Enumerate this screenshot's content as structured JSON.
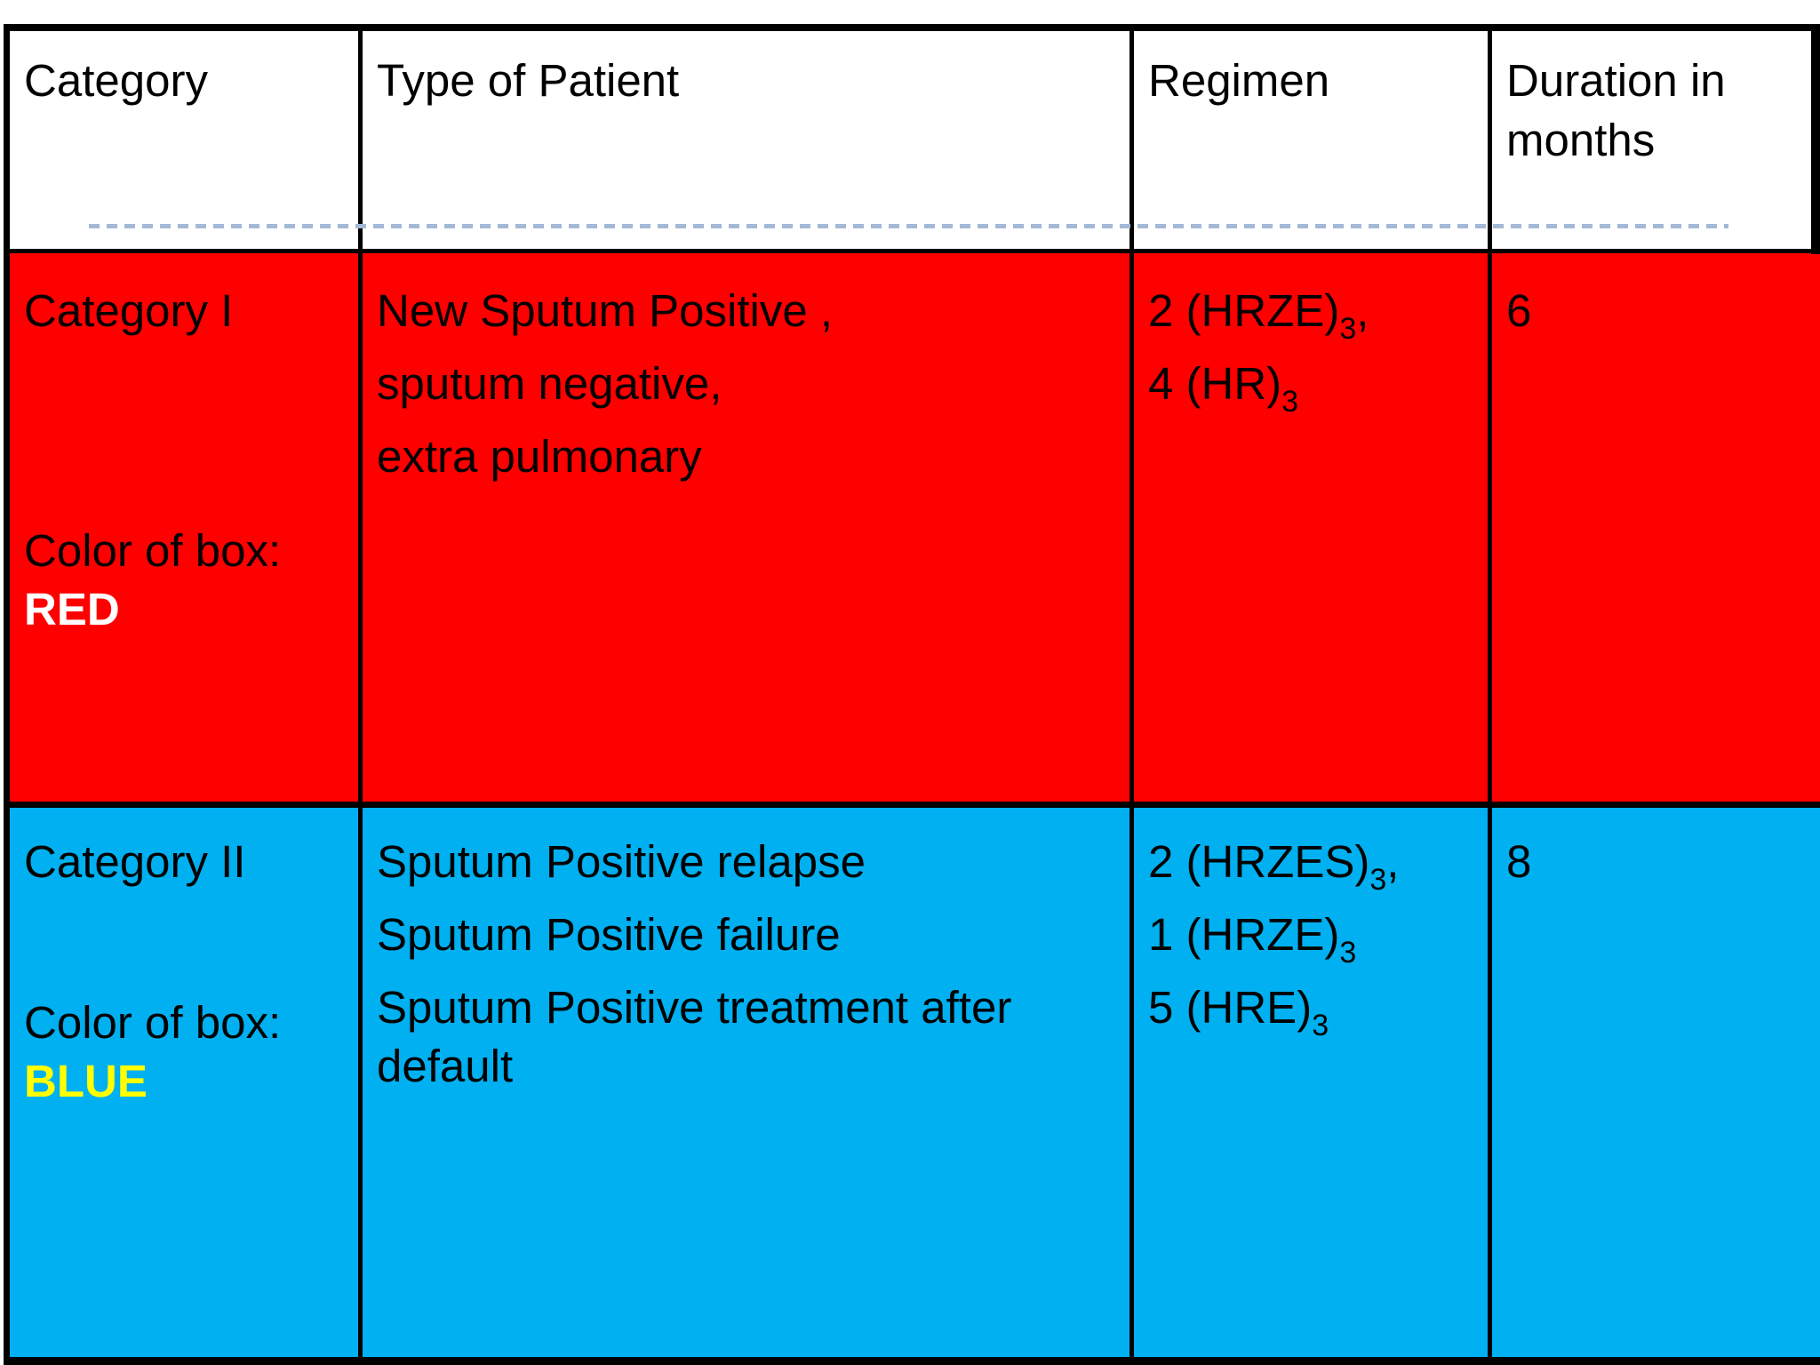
{
  "page": {
    "background": "#FFFFFF"
  },
  "divider": {
    "color": "#A3B9D6"
  },
  "table": {
    "border_color": "#000000",
    "header": {
      "category": "Category",
      "type_of_patient": "Type of Patient",
      "regimen": "Regimen",
      "duration": "Duration in months"
    },
    "rows": [
      {
        "category": "Category I",
        "color_of_box_label": "Color of box:",
        "color_of_box_value": "RED",
        "color_of_box_value_color": "#FFFFFF",
        "row_color": "#FF0000",
        "patient_types": [
          "New Sputum Positive ,",
          "sputum negative,",
          "extra pulmonary"
        ],
        "regimen": [
          {
            "text": "2 (HRZE)",
            "sub": "3",
            "tail": ","
          },
          {
            "text": "4 (HR)",
            "sub": "3",
            "tail": ""
          }
        ],
        "duration_months": "6"
      },
      {
        "category": "Category II",
        "color_of_box_label": "Color of box:",
        "color_of_box_value": "BLUE",
        "color_of_box_value_color": "#FFFF00",
        "row_color": "#00B0F0",
        "patient_types": [
          "Sputum Positive relapse",
          "Sputum Positive failure",
          "Sputum Positive treatment after default"
        ],
        "regimen": [
          {
            "text": "2 (HRZES)",
            "sub": "3",
            "tail": ","
          },
          {
            "text": "1 (HRZE)",
            "sub": "3",
            "tail": ""
          },
          {
            "text": "5 (HRE)",
            "sub": "3",
            "tail": ""
          }
        ],
        "duration_months": "8"
      }
    ]
  }
}
